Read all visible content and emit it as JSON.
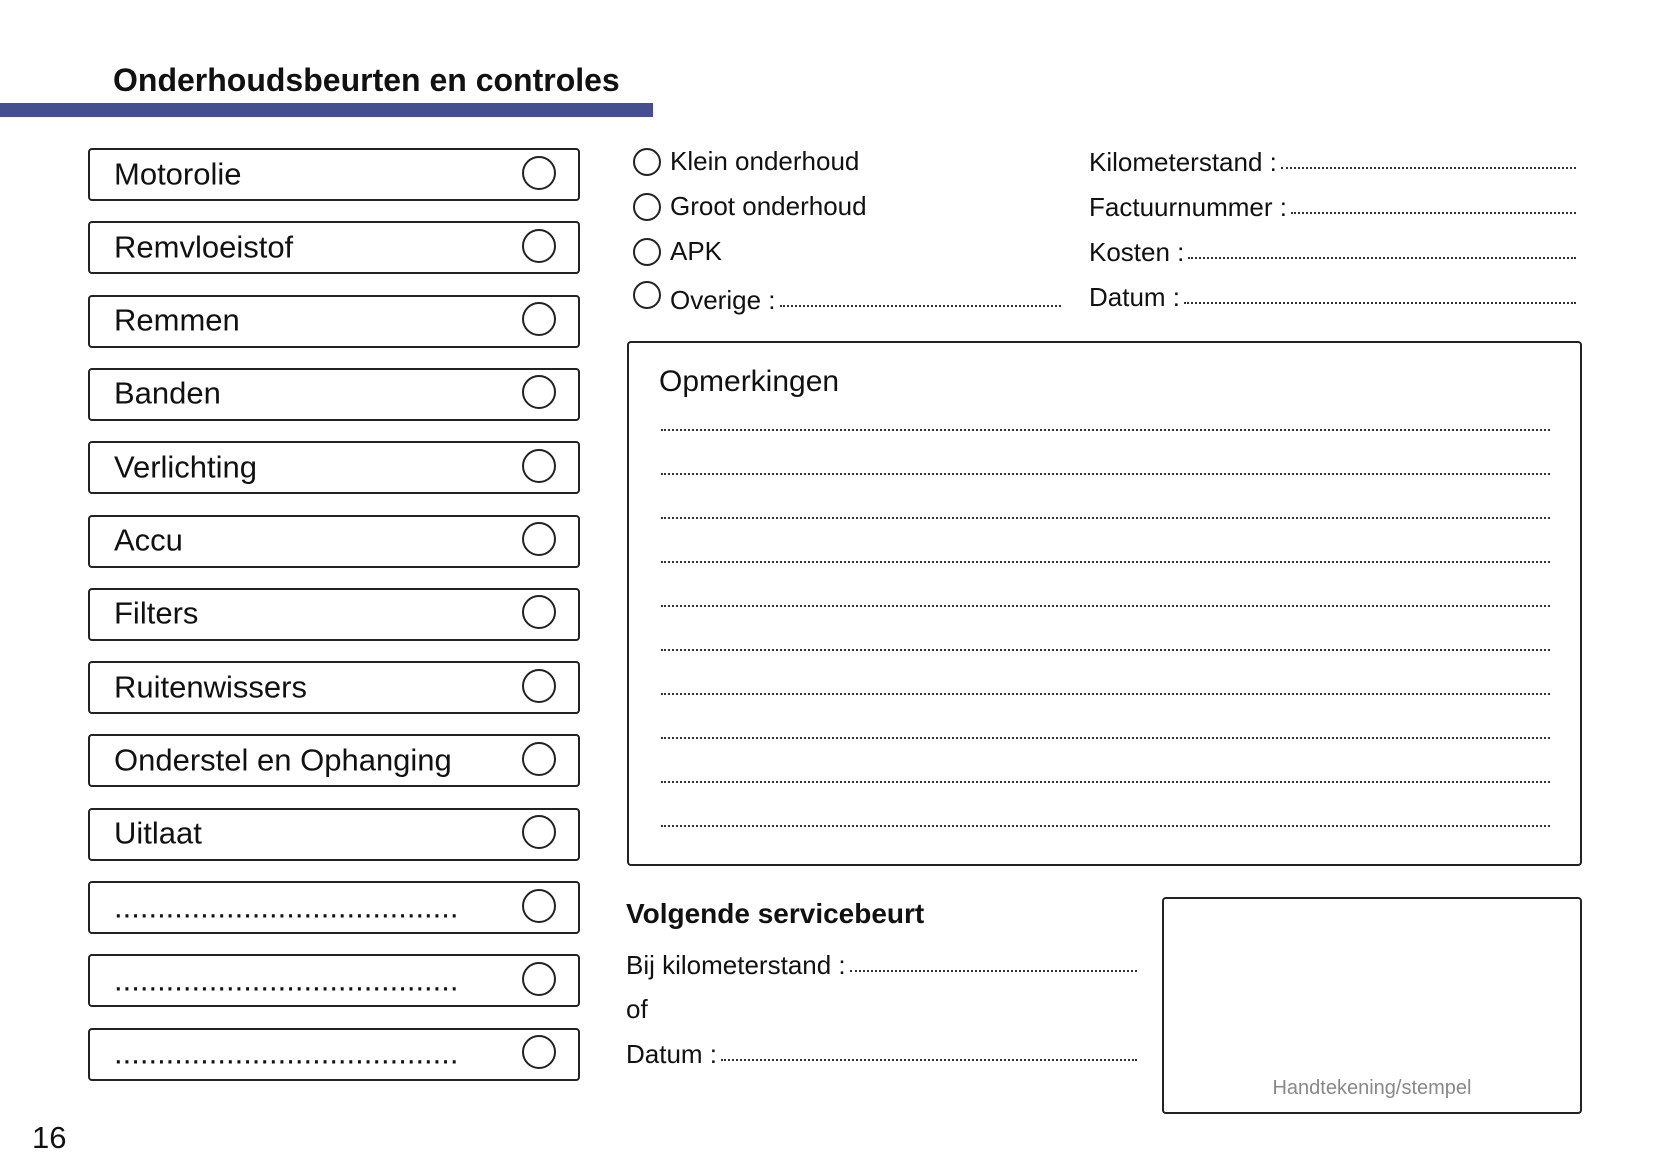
{
  "header": {
    "title": "Onderhoudsbeurten en controles",
    "accent_color": "#454e8e"
  },
  "checklist": [
    {
      "label": "Motorolie"
    },
    {
      "label": "Remvloeistof"
    },
    {
      "label": "Remmen"
    },
    {
      "label": "Banden"
    },
    {
      "label": "Verlichting"
    },
    {
      "label": "Accu"
    },
    {
      "label": "Filters"
    },
    {
      "label": "Ruitenwissers"
    },
    {
      "label": "Onderstel en Ophanging"
    },
    {
      "label": "Uitlaat"
    },
    {
      "label": "........................................"
    },
    {
      "label": "........................................"
    },
    {
      "label": "........................................"
    }
  ],
  "service_type": [
    {
      "label": "Klein onderhoud"
    },
    {
      "label": "Groot onderhoud"
    },
    {
      "label": "APK"
    },
    {
      "label": "Overige :"
    }
  ],
  "details": [
    {
      "label": "Kilometerstand :"
    },
    {
      "label": "Factuurnummer :"
    },
    {
      "label": "Kosten :"
    },
    {
      "label": "Datum :"
    }
  ],
  "remarks": {
    "title": "Opmerkingen",
    "line_count": 10
  },
  "next_service": {
    "title": "Volgende servicebeurt",
    "km_label": "Bij kilometerstand :",
    "or_label": "of",
    "date_label": "Datum :"
  },
  "stamp": {
    "label": "Handtekening/stempel"
  },
  "page_number": "16"
}
